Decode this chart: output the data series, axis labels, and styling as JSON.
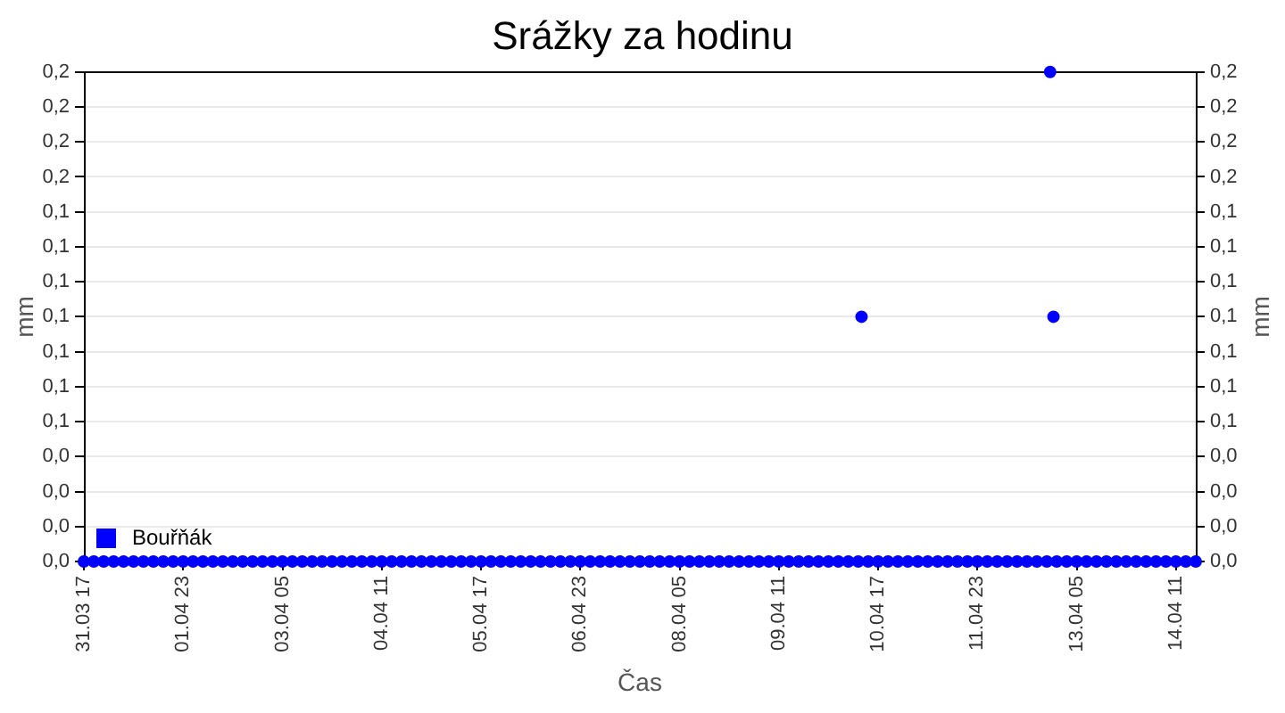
{
  "chart_data": {
    "type": "scatter",
    "title": "Srážky za hodinu",
    "xlabel": "Čas",
    "ylabel": "mm",
    "y2label": "mm",
    "x": [
      "--03-31T17:00",
      "--03-31T20:00",
      "--03-31T23:00",
      "--04-01T02:00",
      "--04-01T05:00",
      "--04-01T08:00",
      "--04-01T11:00",
      "--04-01T14:00",
      "--04-01T17:00",
      "--04-01T20:00",
      "--04-01T23:00",
      "--04-02T02:00",
      "--04-02T05:00",
      "--04-02T08:00",
      "--04-02T11:00",
      "--04-02T14:00",
      "--04-02T17:00",
      "--04-02T20:00",
      "--04-02T23:00",
      "--04-03T02:00",
      "--04-03T05:00",
      "--04-03T08:00",
      "--04-03T11:00",
      "--04-03T14:00",
      "--04-03T17:00",
      "--04-03T20:00",
      "--04-03T23:00",
      "--04-04T02:00",
      "--04-04T05:00",
      "--04-04T08:00",
      "--04-04T11:00",
      "--04-04T14:00",
      "--04-04T17:00",
      "--04-04T20:00",
      "--04-04T23:00",
      "--04-05T02:00",
      "--04-05T05:00",
      "--04-05T08:00",
      "--04-05T11:00",
      "--04-05T14:00",
      "--04-05T17:00",
      "--04-05T20:00",
      "--04-05T23:00",
      "--04-06T02:00",
      "--04-06T05:00",
      "--04-06T08:00",
      "--04-06T11:00",
      "--04-06T14:00",
      "--04-06T17:00",
      "--04-06T20:00",
      "--04-06T23:00",
      "--04-07T02:00",
      "--04-07T05:00",
      "--04-07T08:00",
      "--04-07T11:00",
      "--04-07T14:00",
      "--04-07T17:00",
      "--04-07T20:00",
      "--04-07T23:00",
      "--04-08T02:00",
      "--04-08T05:00",
      "--04-08T08:00",
      "--04-08T11:00",
      "--04-08T14:00",
      "--04-08T17:00",
      "--04-08T20:00",
      "--04-08T23:00",
      "--04-09T02:00",
      "--04-09T05:00",
      "--04-09T08:00",
      "--04-09T11:00",
      "--04-09T14:00",
      "--04-09T17:00",
      "--04-09T20:00",
      "--04-09T23:00",
      "--04-10T02:00",
      "--04-10T05:00",
      "--04-10T08:00",
      "--04-10T11:00",
      "--04-10T12:00",
      "--04-10T14:00",
      "--04-10T17:00",
      "--04-10T20:00",
      "--04-10T23:00",
      "--04-11T02:00",
      "--04-11T05:00",
      "--04-11T08:00",
      "--04-11T11:00",
      "--04-11T14:00",
      "--04-11T17:00",
      "--04-11T20:00",
      "--04-11T23:00",
      "--04-12T02:00",
      "--04-12T05:00",
      "--04-12T08:00",
      "--04-12T11:00",
      "--04-12T14:00",
      "--04-12T17:00",
      "--04-12T20:00",
      "--04-12T21:00",
      "--04-12T22:00",
      "--04-12T23:00",
      "--04-13T02:00",
      "--04-13T05:00",
      "--04-13T08:00",
      "--04-13T11:00",
      "--04-13T14:00",
      "--04-13T17:00",
      "--04-13T20:00",
      "--04-13T23:00",
      "--04-14T02:00",
      "--04-14T05:00",
      "--04-14T08:00",
      "--04-14T11:00",
      "--04-14T14:00",
      "--04-14T17:00"
    ],
    "series": [
      {
        "name": "Bouřňák",
        "color": "#0000ff",
        "values": [
          0,
          0,
          0,
          0,
          0,
          0,
          0,
          0,
          0,
          0,
          0,
          0,
          0,
          0,
          0,
          0,
          0,
          0,
          0,
          0,
          0,
          0,
          0,
          0,
          0,
          0,
          0,
          0,
          0,
          0,
          0,
          0,
          0,
          0,
          0,
          0,
          0,
          0,
          0,
          0,
          0,
          0,
          0,
          0,
          0,
          0,
          0,
          0,
          0,
          0,
          0,
          0,
          0,
          0,
          0,
          0,
          0,
          0,
          0,
          0,
          0,
          0,
          0,
          0,
          0,
          0,
          0,
          0,
          0,
          0,
          0,
          0,
          0,
          0,
          0,
          0,
          0,
          0,
          0,
          0.1,
          0,
          0,
          0,
          0,
          0,
          0,
          0,
          0,
          0,
          0,
          0,
          0,
          0,
          0,
          0,
          0,
          0,
          0,
          0,
          0.2,
          0.1,
          0,
          0,
          0,
          0,
          0,
          0,
          0,
          0,
          0,
          0,
          0,
          0,
          0,
          0,
          0
        ]
      }
    ],
    "xlim": [
      "--03-31T17:00",
      "--04-14T17:00"
    ],
    "xticks": [
      {
        "value": "--03-31T17:00",
        "label": "31.03 17"
      },
      {
        "value": "--04-01T23:00",
        "label": "01.04 23"
      },
      {
        "value": "--04-03T05:00",
        "label": "03.04 05"
      },
      {
        "value": "--04-04T11:00",
        "label": "04.04 11"
      },
      {
        "value": "--04-05T17:00",
        "label": "05.04 17"
      },
      {
        "value": "--04-06T23:00",
        "label": "06.04 23"
      },
      {
        "value": "--04-08T05:00",
        "label": "08.04 05"
      },
      {
        "value": "--04-09T11:00",
        "label": "09.04 11"
      },
      {
        "value": "--04-10T17:00",
        "label": "10.04 17"
      },
      {
        "value": "--04-11T23:00",
        "label": "11.04 23"
      },
      {
        "value": "--04-13T05:00",
        "label": "13.04 05"
      },
      {
        "value": "--04-14T11:00",
        "label": "14.04 11"
      }
    ],
    "ylim": [
      0,
      0.2
    ],
    "yticks": [
      {
        "value": 0,
        "label": "0,0"
      },
      {
        "value": 0.01429,
        "label": "0,0"
      },
      {
        "value": 0.02857,
        "label": "0,0"
      },
      {
        "value": 0.04286,
        "label": "0,0"
      },
      {
        "value": 0.05714,
        "label": "0,1"
      },
      {
        "value": 0.07143,
        "label": "0,1"
      },
      {
        "value": 0.08571,
        "label": "0,1"
      },
      {
        "value": 0.1,
        "label": "0,1"
      },
      {
        "value": 0.11429,
        "label": "0,1"
      },
      {
        "value": 0.12857,
        "label": "0,1"
      },
      {
        "value": 0.14286,
        "label": "0,1"
      },
      {
        "value": 0.15714,
        "label": "0,2"
      },
      {
        "value": 0.17143,
        "label": "0,2"
      },
      {
        "value": 0.18571,
        "label": "0,2"
      },
      {
        "value": 0.2,
        "label": "0,2"
      }
    ],
    "y2lim": [
      0,
      0.2
    ],
    "y2ticks": [
      {
        "value": 0,
        "label": "0,0"
      },
      {
        "value": 0.01429,
        "label": "0,0"
      },
      {
        "value": 0.02857,
        "label": "0,0"
      },
      {
        "value": 0.04286,
        "label": "0,0"
      },
      {
        "value": 0.05714,
        "label": "0,1"
      },
      {
        "value": 0.07143,
        "label": "0,1"
      },
      {
        "value": 0.08571,
        "label": "0,1"
      },
      {
        "value": 0.1,
        "label": "0,1"
      },
      {
        "value": 0.11429,
        "label": "0,1"
      },
      {
        "value": 0.12857,
        "label": "0,1"
      },
      {
        "value": 0.14286,
        "label": "0,1"
      },
      {
        "value": 0.15714,
        "label": "0,2"
      },
      {
        "value": 0.17143,
        "label": "0,2"
      },
      {
        "value": 0.18571,
        "label": "0,2"
      },
      {
        "value": 0.2,
        "label": "0,2"
      }
    ],
    "grid": "y",
    "legend": "bottom left",
    "marker": "circle"
  }
}
